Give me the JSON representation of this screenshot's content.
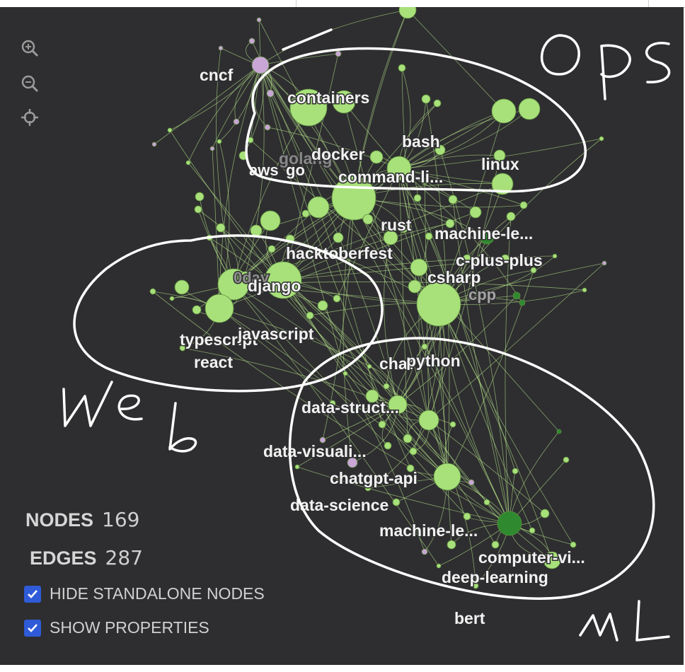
{
  "controls": {
    "zoom_in_icon": "zoom-in-icon",
    "zoom_out_icon": "zoom-out-icon",
    "recenter_icon": "crosshair-icon"
  },
  "stats": {
    "nodes_label": "NODES",
    "nodes_value": "169",
    "edges_label": "EDGES",
    "edges_value": "287"
  },
  "options": {
    "hide_standalone": "HIDE STANDALONE NODES",
    "show_properties": "SHOW PROPERTIES"
  },
  "annotations": {
    "ops": "Ops",
    "web": "Web",
    "ml": "ML"
  },
  "colors": {
    "node_light": "#a8e07a",
    "node_dark": "#2f8a2f",
    "node_purple": "#c9a6d6",
    "edge": "#b6e28a",
    "background": "#2e2e30",
    "checkbox": "#2f5bd8"
  },
  "labels": [
    {
      "id": "cncf",
      "text": "cncf"
    },
    {
      "id": "containers",
      "text": "containers"
    },
    {
      "id": "bash",
      "text": "bash"
    },
    {
      "id": "golang",
      "text": "golang"
    },
    {
      "id": "docker",
      "text": "docker"
    },
    {
      "id": "aws",
      "text": "aws"
    },
    {
      "id": "go",
      "text": "go"
    },
    {
      "id": "command-line",
      "text": "command-li..."
    },
    {
      "id": "linux",
      "text": "linux"
    },
    {
      "id": "rust",
      "text": "rust"
    },
    {
      "id": "machine-le-1",
      "text": "machine-le..."
    },
    {
      "id": "hacktoberfest",
      "text": "hacktoberfest"
    },
    {
      "id": "c-plus-plus",
      "text": "c-plus-plus"
    },
    {
      "id": "0day",
      "text": "0day"
    },
    {
      "id": "django",
      "text": "django"
    },
    {
      "id": "csharp",
      "text": "csharp"
    },
    {
      "id": "cpp",
      "text": "cpp"
    },
    {
      "id": "typescript",
      "text": "typescript"
    },
    {
      "id": "javascript",
      "text": "javascript"
    },
    {
      "id": "react",
      "text": "react"
    },
    {
      "id": "chat",
      "text": "chat"
    },
    {
      "id": "python",
      "text": "python"
    },
    {
      "id": "data-struct",
      "text": "data-struct..."
    },
    {
      "id": "data-visuali",
      "text": "data-visuali..."
    },
    {
      "id": "chatgpt-api",
      "text": "chatgpt-api"
    },
    {
      "id": "data-science",
      "text": "data-science"
    },
    {
      "id": "machine-le-2",
      "text": "machine-le..."
    },
    {
      "id": "computer-vi",
      "text": "computer-vi..."
    },
    {
      "id": "deep-learning",
      "text": "deep-learning"
    },
    {
      "id": "bert",
      "text": "bert"
    }
  ]
}
